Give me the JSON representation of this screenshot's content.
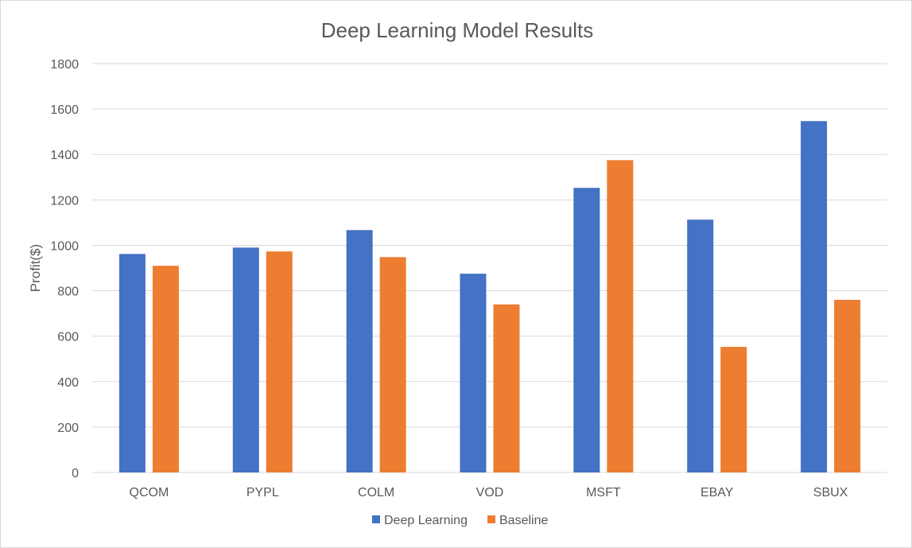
{
  "chart_data": {
    "type": "bar",
    "title": "Deep Learning Model Results",
    "xlabel": "",
    "ylabel": "Profit($)",
    "ylim": [
      0,
      1800
    ],
    "yticks": [
      0,
      200,
      400,
      600,
      800,
      1000,
      1200,
      1400,
      1600,
      1800
    ],
    "grid": true,
    "legend_position": "bottom",
    "categories": [
      "QCOM",
      "PYPL",
      "COLM",
      "VOD",
      "MSFT",
      "EBAY",
      "SBUX"
    ],
    "series": [
      {
        "name": "Deep Learning",
        "color": "#4472C4",
        "values": [
          962,
          990,
          1067,
          875,
          1253,
          1113,
          1547
        ]
      },
      {
        "name": "Baseline",
        "color": "#ED7D31",
        "values": [
          910,
          973,
          948,
          740,
          1375,
          553,
          760
        ]
      }
    ]
  }
}
